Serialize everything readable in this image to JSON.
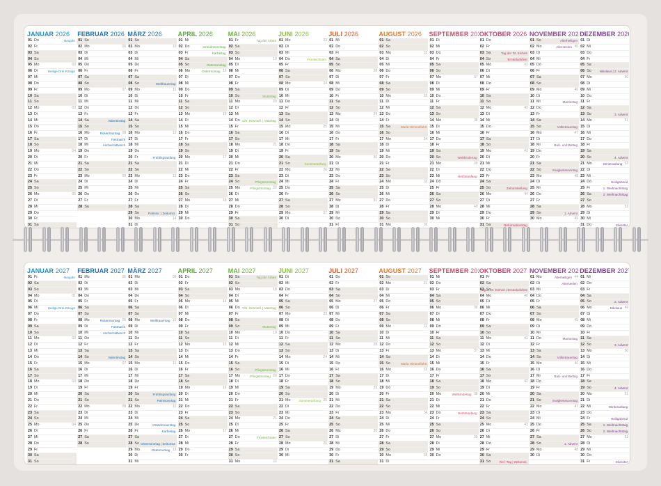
{
  "colors": {
    "januar": "#1f8fc9",
    "februar": "#1f6fb0",
    "maerz": "#2a6fb3",
    "april": "#5aa83a",
    "mai": "#6db33f",
    "juni": "#8cbf3f",
    "juli": "#e05a2a",
    "august": "#e0782a",
    "september": "#d24a6a",
    "oktober": "#c24070",
    "november": "#8e4a8e",
    "dezember": "#7a3f8c"
  },
  "years": [
    "2026",
    "2027"
  ],
  "month_names": [
    "Januar",
    "Februar",
    "März",
    "April",
    "Mai",
    "Juni",
    "Juli",
    "August",
    "September",
    "Oktober",
    "November",
    "Dezember"
  ],
  "holidays": {
    "2026": {
      "0-1": "Neujahr",
      "0-6": "Heilige Drei Könige",
      "1-14": "Valentinstag",
      "1-16": "Rosenmontag",
      "1-17": "Fastnacht",
      "1-18": "Aschermittwoch",
      "2-8": "Weltfrauentag",
      "2-20": "Frühlingsanfang",
      "2-29": "Palmso. | Zeitumst.",
      "3-2": "Gründonnerstag",
      "3-3": "Karfreitag",
      "3-5": "Ostersonntag",
      "3-6": "Ostermontag",
      "4-1": "Tag der Arbeit",
      "4-10": "Muttertag",
      "4-14": "Chr. Himmelf. | Vatertag",
      "4-24": "Pfingstsonntag",
      "4-25": "Pfingstmontag",
      "5-4": "Fronleichnam",
      "5-21": "Sommeranfang",
      "7-15": "Mariä Himmelfahrt",
      "8-20": "Weltkindertag",
      "8-23": "Herbstanfang",
      "9-3": "Tag der Dt. Einheit",
      "9-4": "Erntedankfest",
      "9-25": "Zeitumstellung",
      "9-31": "Reformationstag",
      "10-1": "Allerheiligen",
      "10-2": "Allerseelen",
      "10-11": "Martinstag",
      "10-15": "Volkstrauertag",
      "10-18": "Buß- und Bettag",
      "10-22": "Ewigkeitssonntag",
      "10-29": "1. Advent",
      "11-6": "Nikolaus | 2. Advent",
      "11-13": "3. Advent",
      "11-20": "4. Advent",
      "11-21": "Winteranfang",
      "11-24": "Heiligabend",
      "11-25": "1. Weihnachtstag",
      "11-26": "2. Weihnachtstag",
      "11-31": "Silvester"
    },
    "2027": {
      "0-1": "Neujahr",
      "0-6": "Heilige Drei Könige",
      "1-8": "Rosenmontag",
      "1-9": "Fastnacht",
      "1-10": "Aschermittwoch",
      "1-14": "Valentinstag",
      "2-8": "Weltfrauentag",
      "2-20": "Frühlingsanfang",
      "2-21": "Palmsonntag",
      "2-25": "Gründonnerstag",
      "2-26": "Karfreitag",
      "2-28": "Ostersonntag | Zeitumst.",
      "2-29": "Ostermontag",
      "4-1": "Tag der Arbeit",
      "4-6": "Chr. Himmelf. | Vatertag",
      "4-9": "Muttertag",
      "4-16": "Pfingstsonntag",
      "4-17": "Pfingstmontag",
      "4-27": "Fronleichnam",
      "5-21": "Sommeranfang",
      "7-15": "Mariä Himmelfahrt",
      "8-20": "Weltkindertag",
      "8-23": "Herbstanfang",
      "9-3": "Tag d. Dt. Einheit | Erntedankfest",
      "9-31": "Ref.-Tag | Zeitumst.",
      "10-1": "Allerheiligen",
      "10-2": "Allerseelen",
      "10-11": "Martinstag",
      "10-14": "Volkstrauertag",
      "10-17": "Buß- und Bettag",
      "10-21": "Ewigkeitssonntag",
      "10-28": "1. Advent",
      "11-5": "2. Advent",
      "11-6": "Nikolaus",
      "11-12": "3. Advent",
      "11-19": "4. Advent",
      "11-22": "Winteranfang",
      "11-24": "Heiligabend",
      "11-25": "1. Weihnachtstag",
      "11-26": "2. Weihnachtstag",
      "11-31": "Silvester"
    }
  }
}
